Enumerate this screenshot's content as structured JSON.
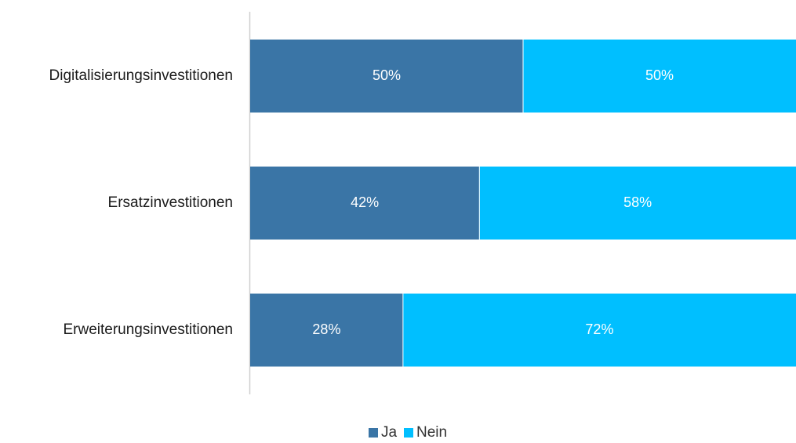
{
  "chart_data": {
    "type": "bar",
    "orientation": "horizontal",
    "stacked": true,
    "categories": [
      "Digitalisierungsinvestitionen",
      "Ersatzinvestitionen",
      "Erweiterungsinvestitionen"
    ],
    "series": [
      {
        "name": "Ja",
        "values": [
          50,
          42,
          28
        ],
        "color": "#3a75a6",
        "labels": [
          "50%",
          "42%",
          "28%"
        ]
      },
      {
        "name": "Nein",
        "values": [
          50,
          58,
          72
        ],
        "color": "#00bfff",
        "labels": [
          "50%",
          "58%",
          "72%"
        ]
      }
    ],
    "xlim": [
      0,
      100
    ],
    "grid": false,
    "legend": "bottom-center"
  }
}
